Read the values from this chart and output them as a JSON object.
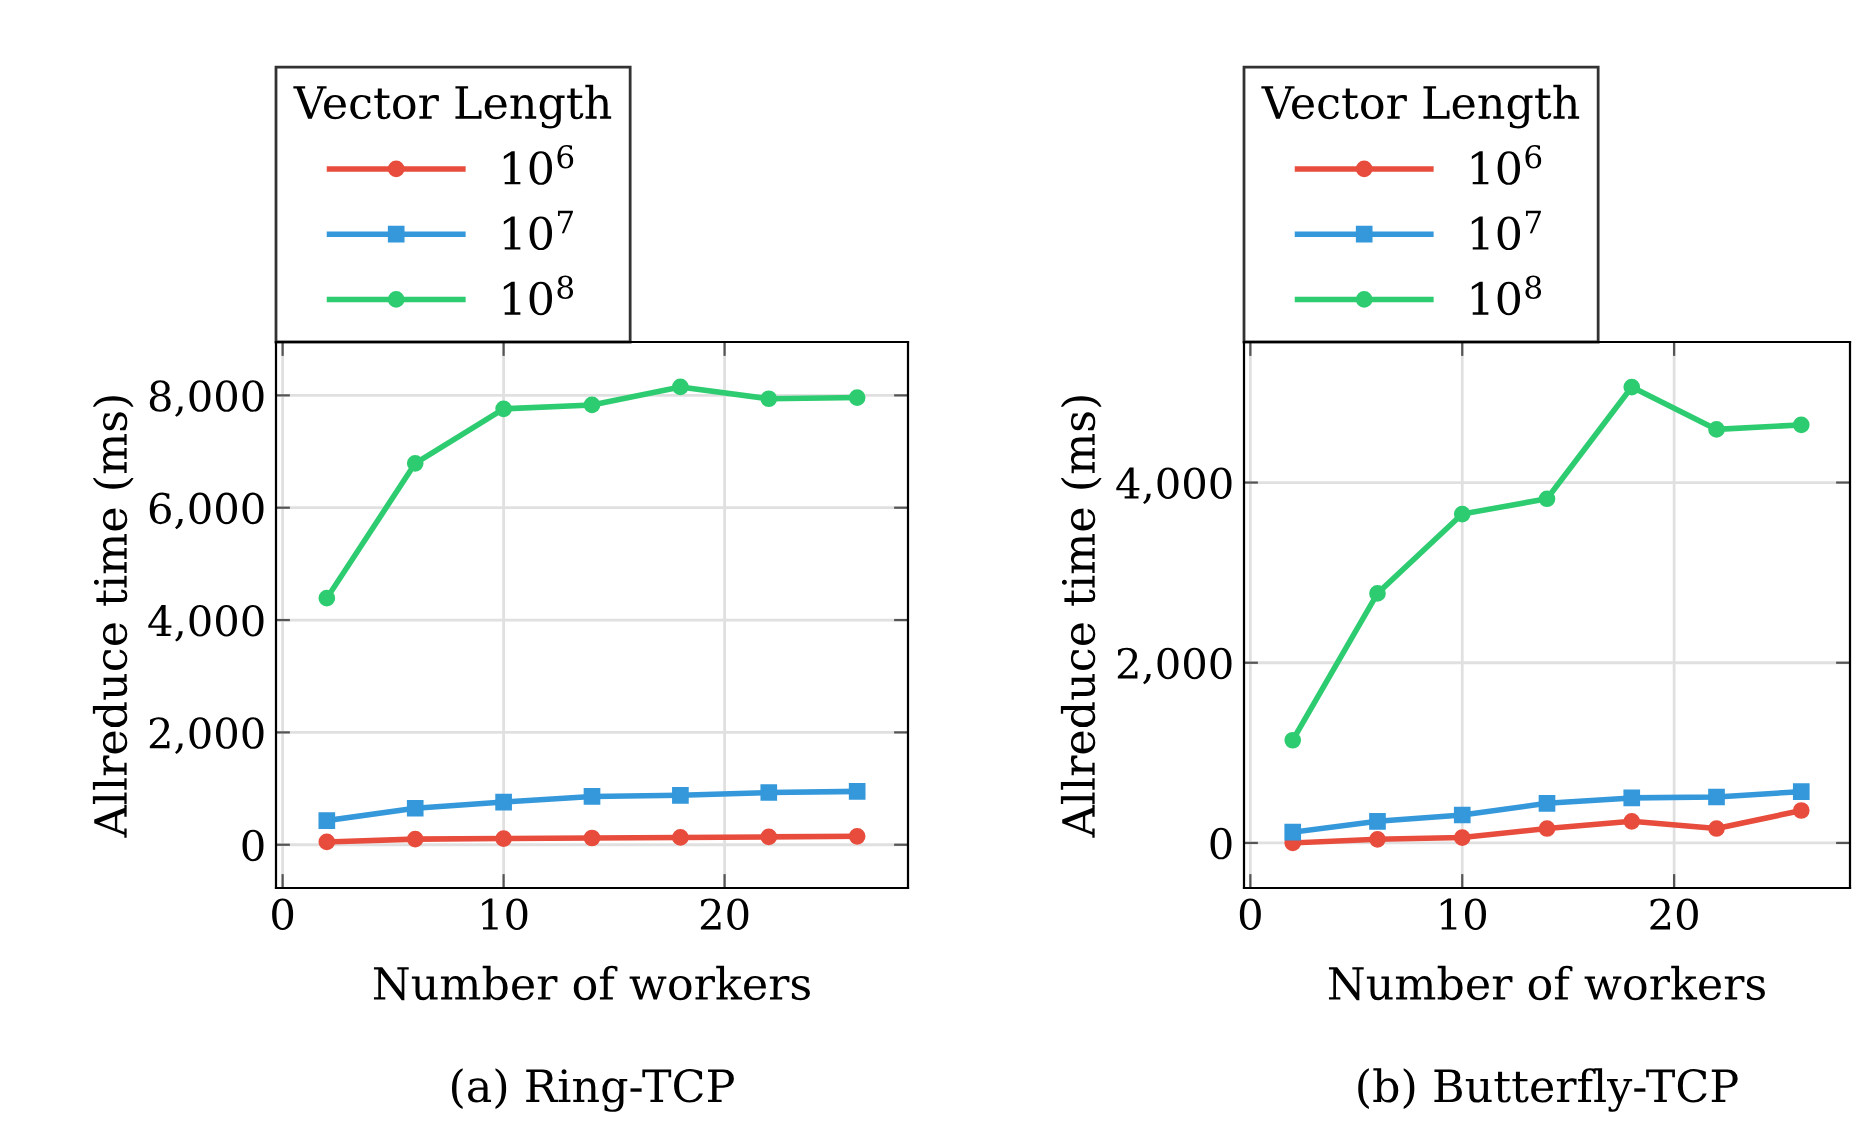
{
  "chart_data": [
    {
      "type": "line",
      "title": "(a) Ring-TCP",
      "xlabel": "Number of workers",
      "ylabel": "Allreduce time (ms)",
      "legend_title": "Vector Length",
      "legend": "top left",
      "grid": true,
      "x": [
        2,
        6,
        10,
        14,
        18,
        22,
        26
      ],
      "series": [
        {
          "name": "10$^{6}$",
          "color": "#e74c3c",
          "marker": "circle",
          "values": [
            50,
            100,
            110,
            120,
            130,
            140,
            150
          ]
        },
        {
          "name": "10$^{7}$",
          "color": "#3498db",
          "marker": "square",
          "values": [
            430,
            650,
            760,
            860,
            880,
            930,
            950
          ]
        },
        {
          "name": "10$^{8}$",
          "color": "#2ecc71",
          "marker": "circle",
          "values": [
            4390,
            6790,
            7760,
            7830,
            8150,
            7940,
            7960
          ]
        }
      ],
      "xlim": [
        -0.3,
        28.3
      ],
      "xticks": [
        0,
        10,
        20
      ],
      "ylim": [
        -770,
        8950
      ],
      "yticks": [
        0,
        {
          "value": 2000,
          "label": "2,000"
        },
        {
          "value": 4000,
          "label": "4,000"
        },
        {
          "value": 6000,
          "label": "6,000"
        },
        {
          "value": 8000,
          "label": "8,000"
        }
      ]
    },
    {
      "type": "line",
      "title": "(b) Butterfly-TCP",
      "xlabel": "Number of workers",
      "ylabel": "Allreduce time (ms)",
      "legend_title": "Vector Length",
      "legend": "top left",
      "grid": true,
      "x": [
        2,
        6,
        10,
        14,
        18,
        22,
        26
      ],
      "series": [
        {
          "name": "10$^{6}$",
          "color": "#e74c3c",
          "marker": "circle",
          "values": [
            0,
            40,
            60,
            160,
            240,
            160,
            360
          ]
        },
        {
          "name": "10$^{7}$",
          "color": "#3498db",
          "marker": "square",
          "values": [
            120,
            240,
            310,
            440,
            500,
            510,
            570
          ]
        },
        {
          "name": "10$^{8}$",
          "color": "#2ecc71",
          "marker": "circle",
          "values": [
            1140,
            2770,
            3650,
            3820,
            5060,
            4590,
            4640
          ]
        }
      ],
      "xlim": [
        -0.3,
        28.3
      ],
      "xticks": [
        0,
        10,
        20
      ],
      "ylim": [
        -500,
        5560
      ],
      "yticks": [
        0,
        {
          "value": 2000,
          "label": "2,000"
        },
        {
          "value": 4000,
          "label": "4,000"
        }
      ]
    }
  ]
}
